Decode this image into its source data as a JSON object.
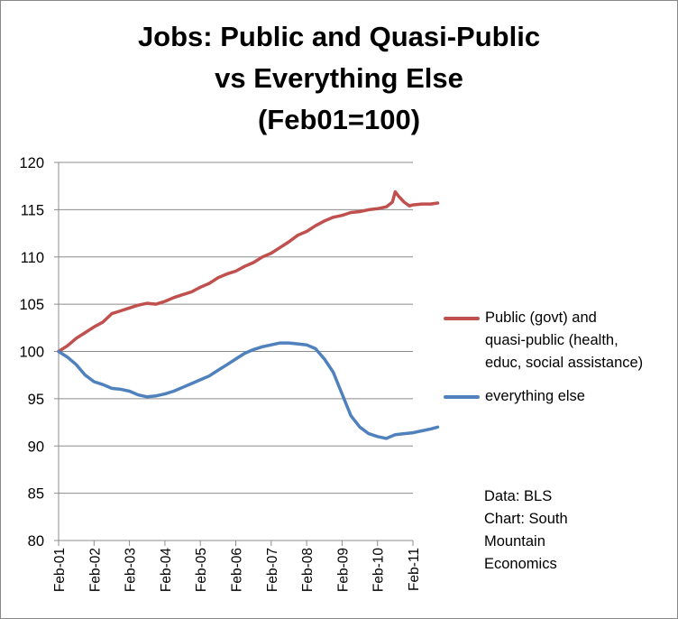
{
  "chart_data": {
    "type": "line",
    "title_lines": [
      "Jobs: Public and Quasi-Public",
      "vs Everything Else",
      "(Feb01=100)"
    ],
    "xlabel": "",
    "ylabel": "",
    "ylim": [
      80,
      120
    ],
    "yticks": [
      "80",
      "85",
      "90",
      "95",
      "100",
      "105",
      "110",
      "115",
      "120"
    ],
    "xtick_labels": [
      "Feb-01",
      "Feb-02",
      "Feb-03",
      "Feb-04",
      "Feb-05",
      "Feb-06",
      "Feb-07",
      "Feb-08",
      "Feb-09",
      "Feb-10",
      "Feb-11"
    ],
    "grid": "horizontal",
    "legend_position": "right",
    "series": [
      {
        "name": "Public (govt) and quasi-public (health, educ, social assistance)",
        "legend_lines": [
          "Public (govt) and",
          "quasi-public (health,",
          "educ, social assistance)"
        ],
        "color": "#C0504D",
        "points": [
          [
            0,
            100.0
          ],
          [
            0.25,
            100.6
          ],
          [
            0.5,
            101.4
          ],
          [
            0.75,
            102.0
          ],
          [
            1.0,
            102.6
          ],
          [
            1.25,
            103.1
          ],
          [
            1.5,
            104.0
          ],
          [
            1.75,
            104.3
          ],
          [
            2.0,
            104.6
          ],
          [
            2.25,
            104.9
          ],
          [
            2.5,
            105.1
          ],
          [
            2.75,
            105.0
          ],
          [
            3.0,
            105.3
          ],
          [
            3.25,
            105.7
          ],
          [
            3.5,
            106.0
          ],
          [
            3.75,
            106.3
          ],
          [
            4.0,
            106.8
          ],
          [
            4.25,
            107.2
          ],
          [
            4.5,
            107.8
          ],
          [
            4.75,
            108.2
          ],
          [
            5.0,
            108.5
          ],
          [
            5.25,
            109.0
          ],
          [
            5.5,
            109.4
          ],
          [
            5.75,
            110.0
          ],
          [
            6.0,
            110.4
          ],
          [
            6.25,
            111.0
          ],
          [
            6.5,
            111.6
          ],
          [
            6.75,
            112.3
          ],
          [
            7.0,
            112.7
          ],
          [
            7.25,
            113.3
          ],
          [
            7.5,
            113.8
          ],
          [
            7.75,
            114.2
          ],
          [
            8.0,
            114.4
          ],
          [
            8.25,
            114.7
          ],
          [
            8.5,
            114.8
          ],
          [
            8.75,
            115.0
          ],
          [
            9.0,
            115.1
          ],
          [
            9.25,
            115.3
          ],
          [
            9.42,
            115.8
          ],
          [
            9.5,
            116.9
          ],
          [
            9.6,
            116.4
          ],
          [
            9.75,
            115.8
          ],
          [
            9.9,
            115.4
          ],
          [
            10.0,
            115.5
          ],
          [
            10.25,
            115.6
          ],
          [
            10.5,
            115.6
          ],
          [
            10.7,
            115.7
          ]
        ]
      },
      {
        "name": "everything else",
        "legend_lines": [
          "everything else"
        ],
        "color": "#4F81BD",
        "points": [
          [
            0,
            100.0
          ],
          [
            0.25,
            99.4
          ],
          [
            0.5,
            98.6
          ],
          [
            0.75,
            97.5
          ],
          [
            1.0,
            96.8
          ],
          [
            1.25,
            96.5
          ],
          [
            1.5,
            96.1
          ],
          [
            1.75,
            96.0
          ],
          [
            2.0,
            95.8
          ],
          [
            2.25,
            95.4
          ],
          [
            2.5,
            95.2
          ],
          [
            2.75,
            95.3
          ],
          [
            3.0,
            95.5
          ],
          [
            3.25,
            95.8
          ],
          [
            3.5,
            96.2
          ],
          [
            3.75,
            96.6
          ],
          [
            4.0,
            97.0
          ],
          [
            4.25,
            97.4
          ],
          [
            4.5,
            98.0
          ],
          [
            4.75,
            98.6
          ],
          [
            5.0,
            99.2
          ],
          [
            5.25,
            99.8
          ],
          [
            5.5,
            100.2
          ],
          [
            5.75,
            100.5
          ],
          [
            6.0,
            100.7
          ],
          [
            6.25,
            100.9
          ],
          [
            6.5,
            100.9
          ],
          [
            6.75,
            100.8
          ],
          [
            7.0,
            100.7
          ],
          [
            7.25,
            100.3
          ],
          [
            7.5,
            99.2
          ],
          [
            7.75,
            97.8
          ],
          [
            8.0,
            95.5
          ],
          [
            8.25,
            93.2
          ],
          [
            8.5,
            92.0
          ],
          [
            8.75,
            91.3
          ],
          [
            9.0,
            91.0
          ],
          [
            9.25,
            90.8
          ],
          [
            9.5,
            91.2
          ],
          [
            9.75,
            91.3
          ],
          [
            10.0,
            91.4
          ],
          [
            10.25,
            91.6
          ],
          [
            10.5,
            91.8
          ],
          [
            10.7,
            92.0
          ]
        ]
      }
    ],
    "source_lines": [
      "Data: BLS",
      "Chart: South",
      "Mountain",
      "Economics"
    ]
  }
}
